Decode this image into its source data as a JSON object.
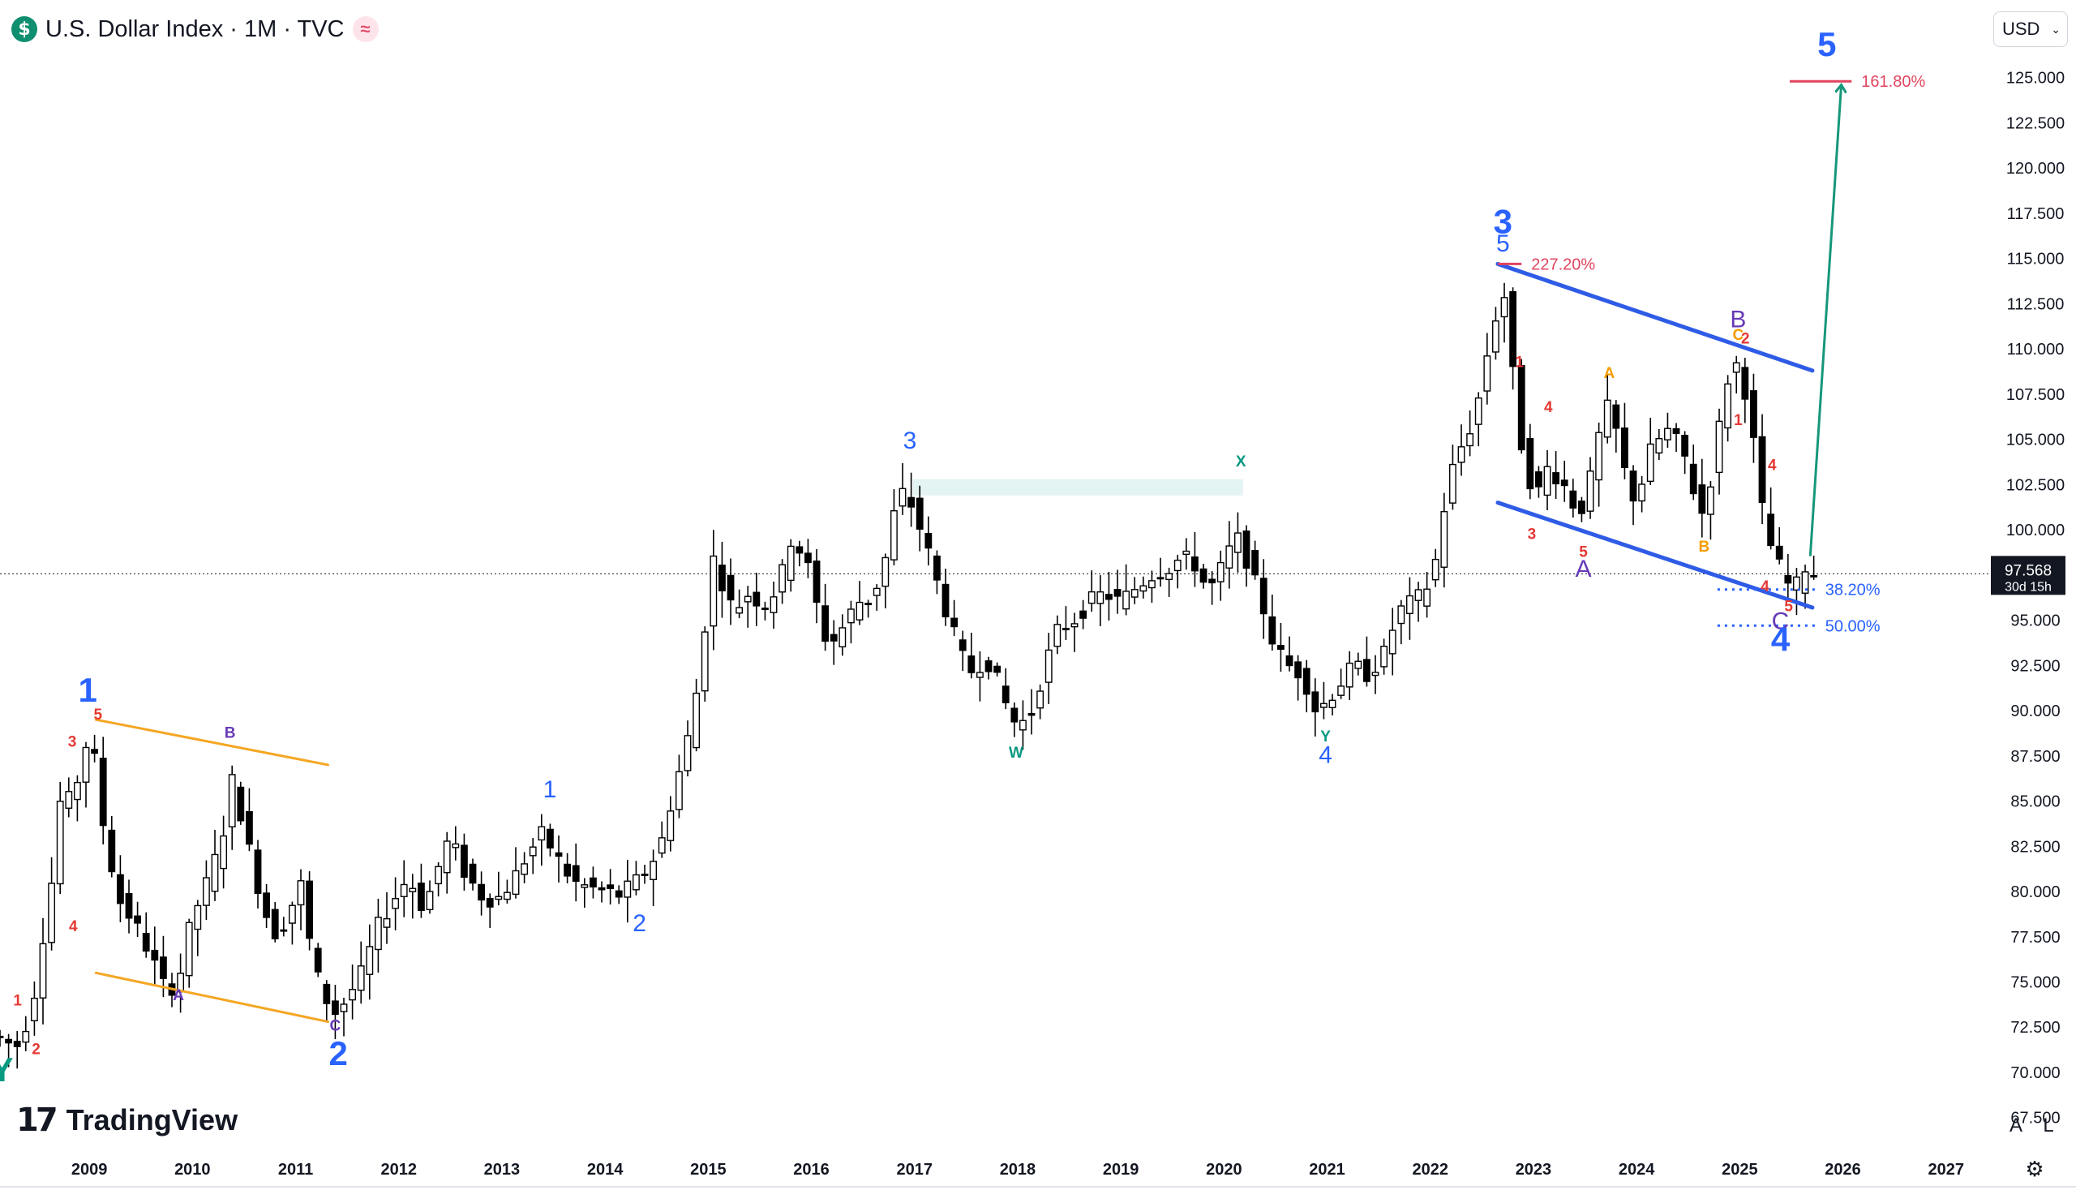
{
  "header": {
    "symbol_icon": "$",
    "title": "U.S. Dollar Index · 1M · TVC",
    "live_icon": "≈"
  },
  "currency_selector": {
    "value": "USD",
    "icon": "chevron-down-icon"
  },
  "branding": {
    "mark": "17",
    "name": "TradingView"
  },
  "bottom_buttons": {
    "auto": "A",
    "log": "L",
    "settings_icon": "gear-icon"
  },
  "colors": {
    "background": "#ffffff",
    "candle": "#000000",
    "wave_blue": "#2962ff",
    "wave_red": "#e53935",
    "wave_purple": "#673ab7",
    "wave_orange": "#f59c00",
    "wave_teal": "#089981",
    "channel_blue": "#2f5ce6",
    "channel_orange": "#f5a623",
    "arrow_green": "#16977a",
    "fib_red": "#e0455f",
    "fib_blue": "#2962ff"
  },
  "chart_data": {
    "type": "candlestick",
    "x_axis_labels": [
      "2009",
      "2010",
      "2011",
      "2012",
      "2013",
      "2014",
      "2015",
      "2016",
      "2017",
      "2018",
      "2019",
      "2020",
      "2021",
      "2022",
      "2023",
      "2024",
      "2025",
      "2026",
      "2027"
    ],
    "y_axis_labels": [
      "125.000",
      "122.500",
      "120.000",
      "117.500",
      "115.000",
      "112.500",
      "110.000",
      "107.500",
      "105.000",
      "102.500",
      "100.000",
      "95.000",
      "92.500",
      "90.000",
      "87.500",
      "85.000",
      "82.500",
      "80.000",
      "77.500",
      "75.000",
      "72.500",
      "70.000",
      "67.500"
    ],
    "ylim": [
      66.5,
      127.5
    ],
    "xlim": [
      2008.15,
      2027.45
    ],
    "last_price": {
      "value": "97.568",
      "countdown": "30d 15h",
      "y": 97.568
    },
    "price_path": [
      [
        2008.15,
        72.0
      ],
      [
        2008.35,
        71.4
      ],
      [
        2008.5,
        73.5
      ],
      [
        2008.62,
        78.0
      ],
      [
        2008.72,
        81.5
      ],
      [
        2008.8,
        86.5
      ],
      [
        2008.88,
        84.5
      ],
      [
        2009.0,
        87.8
      ],
      [
        2009.08,
        88.8
      ],
      [
        2009.15,
        85.0
      ],
      [
        2009.25,
        82.0
      ],
      [
        2009.35,
        79.5
      ],
      [
        2009.5,
        78.2
      ],
      [
        2009.65,
        76.5
      ],
      [
        2009.8,
        74.5
      ],
      [
        2009.92,
        75.0
      ],
      [
        2010.05,
        78.5
      ],
      [
        2010.2,
        80.5
      ],
      [
        2010.35,
        83.0
      ],
      [
        2010.42,
        86.5
      ],
      [
        2010.5,
        85.0
      ],
      [
        2010.62,
        82.0
      ],
      [
        2010.75,
        79.0
      ],
      [
        2010.88,
        77.5
      ],
      [
        2011.0,
        79.0
      ],
      [
        2011.12,
        80.5
      ],
      [
        2011.22,
        76.0
      ],
      [
        2011.32,
        74.5
      ],
      [
        2011.42,
        73.2
      ],
      [
        2011.55,
        74.0
      ],
      [
        2011.7,
        75.5
      ],
      [
        2011.85,
        78.0
      ],
      [
        2012.0,
        79.5
      ],
      [
        2012.15,
        80.8
      ],
      [
        2012.3,
        79.0
      ],
      [
        2012.45,
        81.5
      ],
      [
        2012.55,
        83.0
      ],
      [
        2012.7,
        81.0
      ],
      [
        2012.85,
        79.8
      ],
      [
        2013.0,
        79.5
      ],
      [
        2013.15,
        80.5
      ],
      [
        2013.3,
        82.0
      ],
      [
        2013.45,
        83.2
      ],
      [
        2013.6,
        81.8
      ],
      [
        2013.75,
        80.5
      ],
      [
        2013.9,
        80.2
      ],
      [
        2014.05,
        80.0
      ],
      [
        2014.2,
        79.8
      ],
      [
        2014.35,
        80.5
      ],
      [
        2014.5,
        81.5
      ],
      [
        2014.62,
        83.0
      ],
      [
        2014.72,
        85.5
      ],
      [
        2014.82,
        87.5
      ],
      [
        2014.92,
        90.0
      ],
      [
        2015.02,
        94.5
      ],
      [
        2015.1,
        98.5
      ],
      [
        2015.2,
        97.0
      ],
      [
        2015.3,
        95.5
      ],
      [
        2015.45,
        96.5
      ],
      [
        2015.6,
        95.8
      ],
      [
        2015.75,
        97.0
      ],
      [
        2015.85,
        99.5
      ],
      [
        2016.0,
        98.5
      ],
      [
        2016.1,
        96.0
      ],
      [
        2016.22,
        93.5
      ],
      [
        2016.35,
        94.5
      ],
      [
        2016.5,
        96.0
      ],
      [
        2016.65,
        96.2
      ],
      [
        2016.78,
        98.5
      ],
      [
        2016.88,
        101.5
      ],
      [
        2016.97,
        102.2
      ],
      [
        2017.05,
        101.0
      ],
      [
        2017.15,
        99.5
      ],
      [
        2017.28,
        97.0
      ],
      [
        2017.42,
        94.5
      ],
      [
        2017.55,
        92.5
      ],
      [
        2017.65,
        92.0
      ],
      [
        2017.72,
        93.0
      ],
      [
        2017.8,
        92.5
      ],
      [
        2017.9,
        91.0
      ],
      [
        2018.0,
        89.5
      ],
      [
        2018.08,
        89.2
      ],
      [
        2018.2,
        90.0
      ],
      [
        2018.32,
        92.5
      ],
      [
        2018.45,
        94.5
      ],
      [
        2018.6,
        95.0
      ],
      [
        2018.75,
        96.0
      ],
      [
        2018.9,
        96.5
      ],
      [
        2019.05,
        96.0
      ],
      [
        2019.2,
        96.8
      ],
      [
        2019.35,
        97.5
      ],
      [
        2019.5,
        97.8
      ],
      [
        2019.65,
        98.5
      ],
      [
        2019.8,
        98.0
      ],
      [
        2019.9,
        96.5
      ],
      [
        2020.0,
        97.5
      ],
      [
        2020.12,
        99.0
      ],
      [
        2020.2,
        99.5
      ],
      [
        2020.3,
        98.0
      ],
      [
        2020.42,
        96.0
      ],
      [
        2020.55,
        93.5
      ],
      [
        2020.68,
        92.5
      ],
      [
        2020.82,
        92.0
      ],
      [
        2020.95,
        90.0
      ],
      [
        2021.05,
        90.5
      ],
      [
        2021.18,
        91.5
      ],
      [
        2021.32,
        92.5
      ],
      [
        2021.45,
        92.0
      ],
      [
        2021.6,
        93.0
      ],
      [
        2021.75,
        95.5
      ],
      [
        2021.88,
        96.0
      ],
      [
        2022.0,
        96.5
      ],
      [
        2022.1,
        98.0
      ],
      [
        2022.2,
        101.5
      ],
      [
        2022.3,
        104.0
      ],
      [
        2022.4,
        105.0
      ],
      [
        2022.5,
        106.5
      ],
      [
        2022.6,
        109.5
      ],
      [
        2022.7,
        112.0
      ],
      [
        2022.75,
        114.0
      ],
      [
        2022.82,
        111.0
      ],
      [
        2022.9,
        106.0
      ],
      [
        2023.0,
        103.0
      ],
      [
        2023.1,
        102.0
      ],
      [
        2023.2,
        103.5
      ],
      [
        2023.35,
        102.5
      ],
      [
        2023.5,
        100.8
      ],
      [
        2023.62,
        103.0
      ],
      [
        2023.72,
        106.0
      ],
      [
        2023.8,
        107.0
      ],
      [
        2023.95,
        103.0
      ],
      [
        2024.05,
        101.5
      ],
      [
        2024.2,
        104.5
      ],
      [
        2024.35,
        105.5
      ],
      [
        2024.5,
        104.5
      ],
      [
        2024.62,
        102.0
      ],
      [
        2024.7,
        100.8
      ],
      [
        2024.82,
        104.0
      ],
      [
        2024.9,
        107.5
      ],
      [
        2025.0,
        109.5
      ],
      [
        2025.1,
        108.0
      ],
      [
        2025.2,
        104.5
      ],
      [
        2025.3,
        100.0
      ],
      [
        2025.4,
        98.5
      ],
      [
        2025.5,
        97.2
      ],
      [
        2025.58,
        96.5
      ],
      [
        2025.68,
        98.0
      ],
      [
        2025.78,
        97.6
      ]
    ],
    "wave_labels": [
      {
        "text": "Y",
        "x": 2008.17,
        "y": 69.5,
        "color": "wave_teal",
        "size": "lg"
      },
      {
        "text": "1",
        "x": 2008.32,
        "y": 73.7,
        "color": "wave_red",
        "size": "sm"
      },
      {
        "text": "2",
        "x": 2008.5,
        "y": 71.0,
        "color": "wave_red",
        "size": "sm"
      },
      {
        "text": "1",
        "x": 2009.0,
        "y": 90.5,
        "color": "wave_blue",
        "size": "lg"
      },
      {
        "text": "3",
        "x": 2008.85,
        "y": 88.0,
        "color": "wave_red",
        "size": "sm"
      },
      {
        "text": "5",
        "x": 2009.1,
        "y": 89.5,
        "color": "wave_red",
        "size": "sm"
      },
      {
        "text": "4",
        "x": 2008.86,
        "y": 77.8,
        "color": "wave_red",
        "size": "sm"
      },
      {
        "text": "A",
        "x": 2009.88,
        "y": 74.0,
        "color": "wave_purple",
        "size": "sm"
      },
      {
        "text": "B",
        "x": 2010.38,
        "y": 88.5,
        "color": "wave_purple",
        "size": "sm"
      },
      {
        "text": "C",
        "x": 2011.4,
        "y": 72.3,
        "color": "wave_purple",
        "size": "sm"
      },
      {
        "text": "2",
        "x": 2011.43,
        "y": 70.4,
        "color": "wave_blue",
        "size": "lg"
      },
      {
        "text": "1",
        "x": 2013.48,
        "y": 85.2,
        "color": "wave_blue",
        "size": "md"
      },
      {
        "text": "2",
        "x": 2014.35,
        "y": 77.8,
        "color": "wave_blue",
        "size": "md"
      },
      {
        "text": "3",
        "x": 2016.97,
        "y": 104.5,
        "color": "wave_blue",
        "size": "md"
      },
      {
        "text": "W",
        "x": 2018.0,
        "y": 87.4,
        "color": "wave_teal",
        "size": "sm"
      },
      {
        "text": "X",
        "x": 2020.18,
        "y": 103.5,
        "color": "wave_teal",
        "size": "sm"
      },
      {
        "text": "Y",
        "x": 2021.0,
        "y": 88.3,
        "color": "wave_teal",
        "size": "sm"
      },
      {
        "text": "4",
        "x": 2021.0,
        "y": 87.1,
        "color": "wave_blue",
        "size": "md"
      },
      {
        "text": "3",
        "x": 2022.72,
        "y": 116.4,
        "color": "wave_blue",
        "size": "lg"
      },
      {
        "text": "5",
        "x": 2022.72,
        "y": 115.4,
        "color": "wave_blue",
        "size": "md"
      },
      {
        "text": "1",
        "x": 2022.88,
        "y": 109.0,
        "color": "wave_red",
        "size": "sm"
      },
      {
        "text": "3",
        "x": 2023.0,
        "y": 99.5,
        "color": "wave_red",
        "size": "sm"
      },
      {
        "text": "4",
        "x": 2023.16,
        "y": 106.5,
        "color": "wave_red",
        "size": "sm"
      },
      {
        "text": "5",
        "x": 2023.5,
        "y": 98.5,
        "color": "wave_red",
        "size": "sm"
      },
      {
        "text": "A",
        "x": 2023.5,
        "y": 97.4,
        "color": "wave_purple",
        "size": "md"
      },
      {
        "text": "A",
        "x": 2023.75,
        "y": 108.4,
        "color": "wave_orange",
        "size": "sm"
      },
      {
        "text": "B",
        "x": 2024.67,
        "y": 98.8,
        "color": "wave_orange",
        "size": "sm"
      },
      {
        "text": "C",
        "x": 2025.0,
        "y": 110.5,
        "color": "wave_orange",
        "size": "sm"
      },
      {
        "text": "B",
        "x": 2025.0,
        "y": 111.2,
        "color": "wave_purple",
        "size": "md"
      },
      {
        "text": "2",
        "x": 2025.07,
        "y": 110.3,
        "color": "wave_red",
        "size": "sm"
      },
      {
        "text": "1",
        "x": 2025.0,
        "y": 105.8,
        "color": "wave_red",
        "size": "sm"
      },
      {
        "text": "4",
        "x": 2025.33,
        "y": 103.3,
        "color": "wave_red",
        "size": "sm"
      },
      {
        "text": "4",
        "x": 2025.26,
        "y": 96.6,
        "color": "wave_red",
        "size": "sm"
      },
      {
        "text": "5",
        "x": 2025.49,
        "y": 95.5,
        "color": "wave_red",
        "size": "sm"
      },
      {
        "text": "C",
        "x": 2025.41,
        "y": 94.5,
        "color": "wave_purple",
        "size": "md"
      },
      {
        "text": "4",
        "x": 2025.41,
        "y": 93.3,
        "color": "wave_blue",
        "size": "lg"
      },
      {
        "text": "5",
        "x": 2025.86,
        "y": 126.2,
        "color": "wave_blue",
        "size": "lg"
      }
    ],
    "lines": [
      {
        "name": "channel-upper-2009",
        "color": "channel_orange",
        "from": [
          2009.08,
          89.5
        ],
        "to": [
          2011.33,
          87.0
        ]
      },
      {
        "name": "channel-lower-2009",
        "color": "channel_orange",
        "from": [
          2009.08,
          75.5
        ],
        "to": [
          2011.33,
          72.8
        ]
      },
      {
        "name": "channel-upper-2022",
        "color": "channel_blue",
        "from": [
          2022.67,
          114.7
        ],
        "to": [
          2025.72,
          108.8
        ]
      },
      {
        "name": "channel-lower-2022",
        "color": "channel_blue",
        "from": [
          2022.67,
          101.5
        ],
        "to": [
          2025.72,
          95.7
        ]
      },
      {
        "name": "projection-arrow",
        "color": "arrow_green",
        "from": [
          2025.7,
          98.6
        ],
        "to": [
          2026.0,
          124.6
        ],
        "arrow": true
      }
    ],
    "zones": [
      {
        "name": "resistance-zone",
        "color": "#e3f4f2",
        "x": [
          2017.0,
          2020.2
        ],
        "y": [
          101.9,
          102.8
        ]
      }
    ],
    "fib_levels": [
      {
        "label": "227.20%",
        "x": [
          2022.67,
          2022.9
        ],
        "y": 114.7,
        "color": "fib_red",
        "style": "solid"
      },
      {
        "label": "161.80%",
        "x": [
          2025.5,
          2026.1
        ],
        "y": 124.8,
        "color": "fib_red",
        "style": "solid"
      },
      {
        "label": "38.20%",
        "x": [
          2024.8,
          2025.75
        ],
        "y": 96.7,
        "color": "fib_blue",
        "style": "dotted"
      },
      {
        "label": "50.00%",
        "x": [
          2024.8,
          2025.75
        ],
        "y": 94.7,
        "color": "fib_blue",
        "style": "dotted"
      }
    ]
  }
}
